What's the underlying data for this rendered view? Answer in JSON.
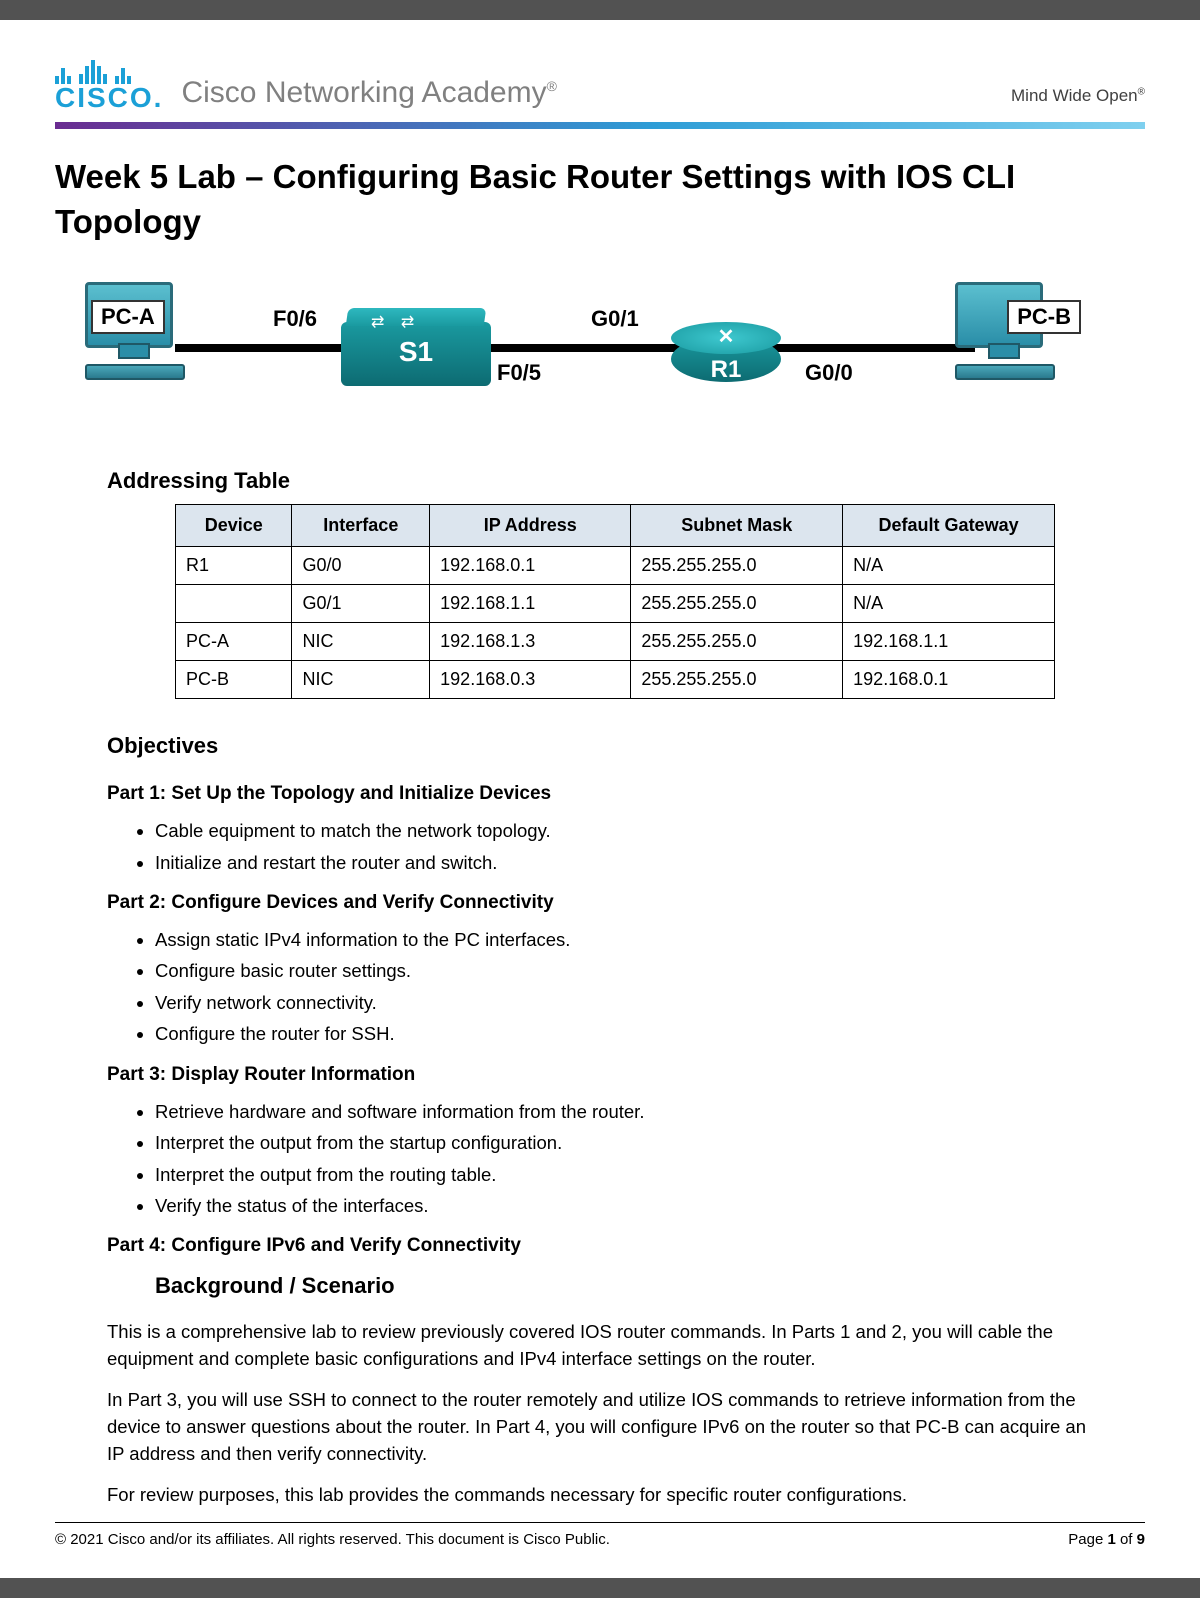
{
  "header": {
    "brand_word": "CISCO.",
    "academy": "Cisco Networking Academy",
    "tagline": "Mind Wide Open",
    "logo_color": "#1ba0d7",
    "gradient": [
      "#6a2c91",
      "#2e9dd6",
      "#7fd0ef"
    ]
  },
  "title": "Week 5 Lab – Configuring Basic Router Settings with IOS CLI Topology",
  "topology": {
    "pc_a": "PC-A",
    "pc_b": "PC-B",
    "switch": "S1",
    "router": "R1",
    "links": {
      "f06": "F0/6",
      "f05": "F0/5",
      "g01": "G0/1",
      "g00": "G0/0"
    },
    "device_color": "#1a9aa0"
  },
  "addressing": {
    "heading": "Addressing Table",
    "columns": [
      "Device",
      "Interface",
      "IP Address",
      "Subnet Mask",
      "Default Gateway"
    ],
    "rows": [
      [
        "R1",
        "G0/0",
        "192.168.0.1",
        "255.255.255.0",
        "N/A"
      ],
      [
        "",
        "G0/1",
        "192.168.1.1",
        "255.255.255.0",
        "N/A"
      ],
      [
        "PC-A",
        "NIC",
        "192.168.1.3",
        "255.255.255.0",
        "192.168.1.1"
      ],
      [
        "PC-B",
        "NIC",
        "192.168.0.3",
        "255.255.255.0",
        "192.168.0.1"
      ]
    ],
    "col_widths": [
      "110px",
      "130px",
      "190px",
      "200px",
      "200px"
    ],
    "header_bg": "#dce5ee"
  },
  "objectives": {
    "heading": "Objectives",
    "parts": [
      {
        "title": "Part 1: Set Up the Topology and Initialize Devices",
        "items": [
          "Cable equipment to match the network topology.",
          "Initialize and restart the router and switch."
        ]
      },
      {
        "title": "Part 2: Configure Devices and Verify Connectivity",
        "items": [
          "Assign static IPv4 information to the PC interfaces.",
          "Configure basic router settings.",
          "Verify network connectivity.",
          "Configure the router for SSH."
        ]
      },
      {
        "title": "Part 3: Display Router Information",
        "items": [
          "Retrieve hardware and software information from the router.",
          "Interpret the output from the startup configuration.",
          "Interpret the output from the routing table.",
          "Verify the status of the interfaces."
        ]
      },
      {
        "title": "Part 4: Configure IPv6 and Verify Connectivity",
        "items": []
      }
    ]
  },
  "background": {
    "heading": "Background / Scenario",
    "paras": [
      "This is a comprehensive lab to review previously covered IOS router commands. In Parts 1 and 2, you will cable the equipment and complete basic configurations and IPv4 interface settings on the router.",
      "In Part 3, you will use SSH to connect to the router remotely and utilize IOS commands to retrieve information from the device to answer questions about the router. In Part 4, you will configure IPv6 on the router so that PC-B can acquire an IP address and then verify connectivity.",
      "For review purposes, this lab provides the commands necessary for specific router configurations."
    ]
  },
  "footer": {
    "copyright": "© 2021 Cisco and/or its affiliates. All rights reserved. This document is Cisco Public.",
    "page_label": "Page ",
    "page_num": "1",
    "page_of": " of ",
    "page_total": "9"
  }
}
